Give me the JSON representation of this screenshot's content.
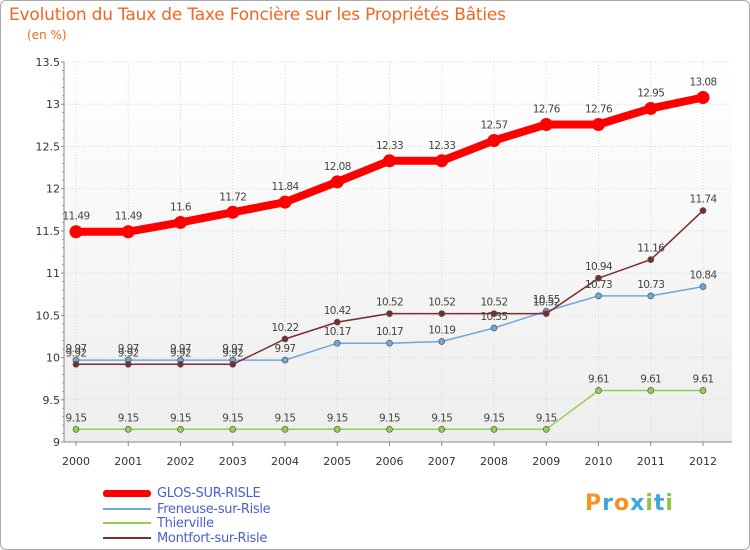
{
  "title": "Evolution du Taux de Taxe Foncière sur les Propriétés Bâties",
  "unit_label": "(en %)",
  "brand": {
    "letters": [
      "P",
      "r",
      "o",
      "x",
      "i",
      "t",
      "i"
    ],
    "colors": [
      "#f7931e",
      "#3da7d8",
      "#f7931e",
      "#3da7d8",
      "#8dc63f",
      "#3da7d8",
      "#8dc63f"
    ]
  },
  "chart_data": {
    "type": "line",
    "x": [
      "2000",
      "2001",
      "2002",
      "2003",
      "2004",
      "2005",
      "2006",
      "2007",
      "2008",
      "2009",
      "2010",
      "2011",
      "2012"
    ],
    "ylim": [
      9,
      13.5
    ],
    "yticks": [
      "9",
      "9.5",
      "10",
      "10.5",
      "11",
      "11.5",
      "12",
      "12.5",
      "13",
      "13.5"
    ],
    "grid": true,
    "legend_position": "bottom-left",
    "series": [
      {
        "name": "GLOS-SUR-RISLE",
        "color": "#ff0000",
        "emphasis": true,
        "values": [
          11.49,
          11.49,
          11.6,
          11.72,
          11.84,
          12.08,
          12.33,
          12.33,
          12.57,
          12.76,
          12.76,
          12.95,
          13.08
        ],
        "labels": [
          "11.49",
          "11.49",
          "11.6",
          "11.72",
          "11.84",
          "12.08",
          "12.33",
          "12.33",
          "12.57",
          "12.76",
          "12.76",
          "12.95",
          "13.08"
        ]
      },
      {
        "name": "Freneuse-sur-Risle",
        "color": "#6fa8dc",
        "values": [
          9.97,
          9.97,
          9.97,
          9.97,
          9.97,
          10.17,
          10.17,
          10.19,
          10.35,
          10.55,
          10.73,
          10.73,
          10.84
        ],
        "labels": [
          "9.97",
          "9.97",
          "9.97",
          "9.97",
          "9.97",
          "10.17",
          "10.17",
          "10.19",
          "10.35",
          "10.55",
          "10.73",
          "10.73",
          "10.84"
        ]
      },
      {
        "name": "Thierville",
        "color": "#92d050",
        "values": [
          9.15,
          9.15,
          9.15,
          9.15,
          9.15,
          9.15,
          9.15,
          9.15,
          9.15,
          9.15,
          9.61,
          9.61,
          9.61
        ],
        "labels": [
          "9.15",
          "9.15",
          "9.15",
          "9.15",
          "9.15",
          "9.15",
          "9.15",
          "9.15",
          "9.15",
          "9.15",
          "9.61",
          "9.61",
          "9.61"
        ]
      },
      {
        "name": "Montfort-sur-Risle",
        "color": "#7b2c2c",
        "values": [
          9.92,
          9.92,
          9.92,
          9.92,
          10.22,
          10.42,
          10.52,
          10.52,
          10.52,
          10.52,
          10.94,
          11.16,
          11.74
        ],
        "labels": [
          "9.92",
          "9.92",
          "9.92",
          "9.92",
          "10.22",
          "10.42",
          "10.52",
          "10.52",
          "10.52",
          "10.52",
          "10.94",
          "11.16",
          "11.74"
        ]
      }
    ]
  }
}
